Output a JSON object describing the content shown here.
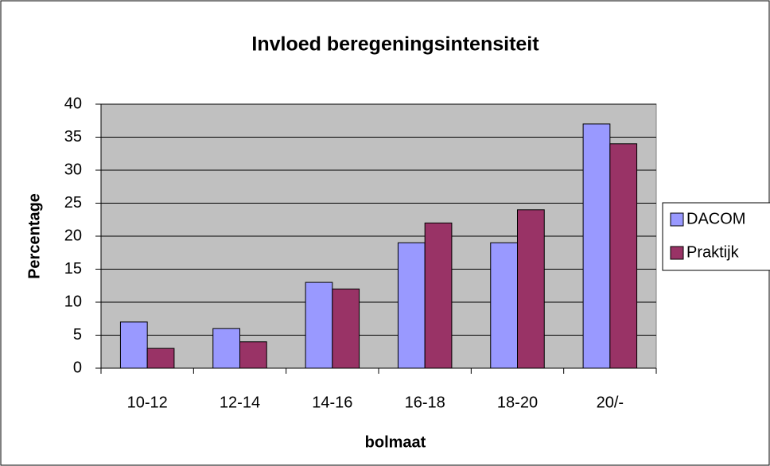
{
  "chart_data": {
    "type": "bar",
    "title": "Invloed beregeningsintensiteit",
    "xlabel": "bolmaat",
    "ylabel": "Percentage",
    "categories": [
      "10-12",
      "12-14",
      "14-16",
      "16-18",
      "18-20",
      "20/-"
    ],
    "series": [
      {
        "name": "DACOM",
        "color": "#9999ff",
        "values": [
          7,
          6,
          13,
          19,
          19,
          37
        ]
      },
      {
        "name": "Praktijk",
        "color": "#993366",
        "values": [
          3,
          4,
          12,
          22,
          24,
          34
        ]
      }
    ],
    "ylim": [
      0,
      40
    ],
    "yticks": [
      0,
      5,
      10,
      15,
      20,
      25,
      30,
      35,
      40
    ],
    "grid": true,
    "legend": "right"
  }
}
